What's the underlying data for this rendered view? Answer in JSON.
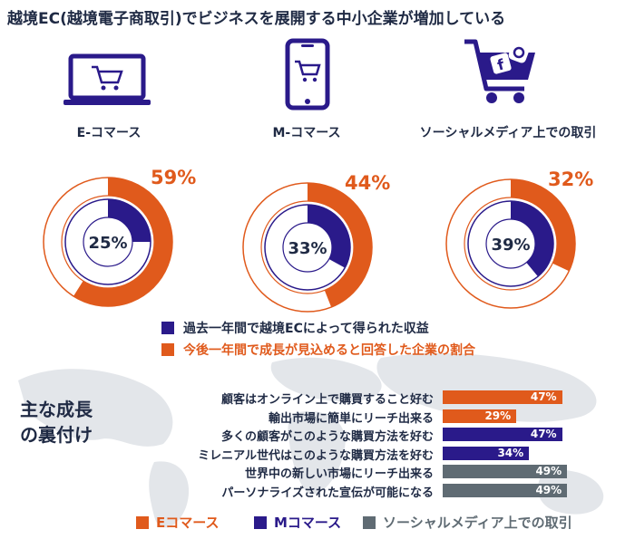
{
  "title": "越境EC(越境電子商取引)でビジネスを展開する中小企業が増加している",
  "categories": [
    {
      "label": "E-コマース",
      "icon": "laptop-cart-icon",
      "outer_pct": 59,
      "inner_pct": 25,
      "outer_label": "59%",
      "inner_label": "25%"
    },
    {
      "label": "M-コマース",
      "icon": "smartphone-cart-icon",
      "outer_pct": 44,
      "inner_pct": 33,
      "outer_label": "44%",
      "inner_label": "33%"
    },
    {
      "label": "ソーシャルメディア上での取引",
      "icon": "social-cart-icon",
      "outer_pct": 32,
      "inner_pct": 39,
      "outer_label": "32%",
      "inner_label": "39%"
    }
  ],
  "legend_top": [
    {
      "label": "過去一年間で越境ECによって得られた収益",
      "color": "#2a1a8a"
    },
    {
      "label": "今後一年間で成長が見込めると回答した企業の割合",
      "color": "#e05a1c"
    }
  ],
  "side_title_line1": "主な成長",
  "side_title_line2": "の裏付け",
  "bottom_legend": [
    {
      "label": "Eコマース",
      "color": "#e05a1c"
    },
    {
      "label": "Mコマース",
      "color": "#2a1a8a"
    },
    {
      "label": "ソーシャルメディア上での取引",
      "color": "#5f6b73"
    }
  ],
  "colors": {
    "orange": "#e05a1c",
    "purple": "#2a1a8a",
    "gray": "#5f6b73",
    "ring_bg": "#ffffff",
    "ring_border": "#e05a1c"
  },
  "chart_data": [
    {
      "type": "pie",
      "title": "",
      "series": [
        {
          "name": "今後一年間で成長が見込めると回答した企業の割合",
          "categories": [
            "E-コマース",
            "M-コマース",
            "ソーシャルメディア上での取引"
          ],
          "values": [
            59,
            44,
            32
          ]
        },
        {
          "name": "過去一年間で越境ECによって得られた収益",
          "categories": [
            "E-コマース",
            "M-コマース",
            "ソーシャルメディア上での取引"
          ],
          "values": [
            25,
            33,
            39
          ]
        }
      ]
    },
    {
      "type": "bar",
      "title": "",
      "categories": [
        "顧客はオンライン上で購買すること好む",
        "輸出市場に簡単にリーチ出来る",
        "多くの顧客がこのような購買方法を好む",
        "ミレニアル世代はこのような購買方法を好む",
        "世界中の新しい市場にリーチ出来る",
        "パーソナライズされた宣伝が可能になる"
      ],
      "values": [
        47,
        29,
        47,
        34,
        49,
        49
      ],
      "value_labels": [
        "47%",
        "29%",
        "47%",
        "34%",
        "49%",
        "49%"
      ],
      "series_of_row": [
        "Eコマース",
        "Eコマース",
        "Mコマース",
        "Mコマース",
        "ソーシャルメディア上での取引",
        "ソーシャルメディア上での取引"
      ],
      "xlim": [
        0,
        50
      ]
    }
  ]
}
